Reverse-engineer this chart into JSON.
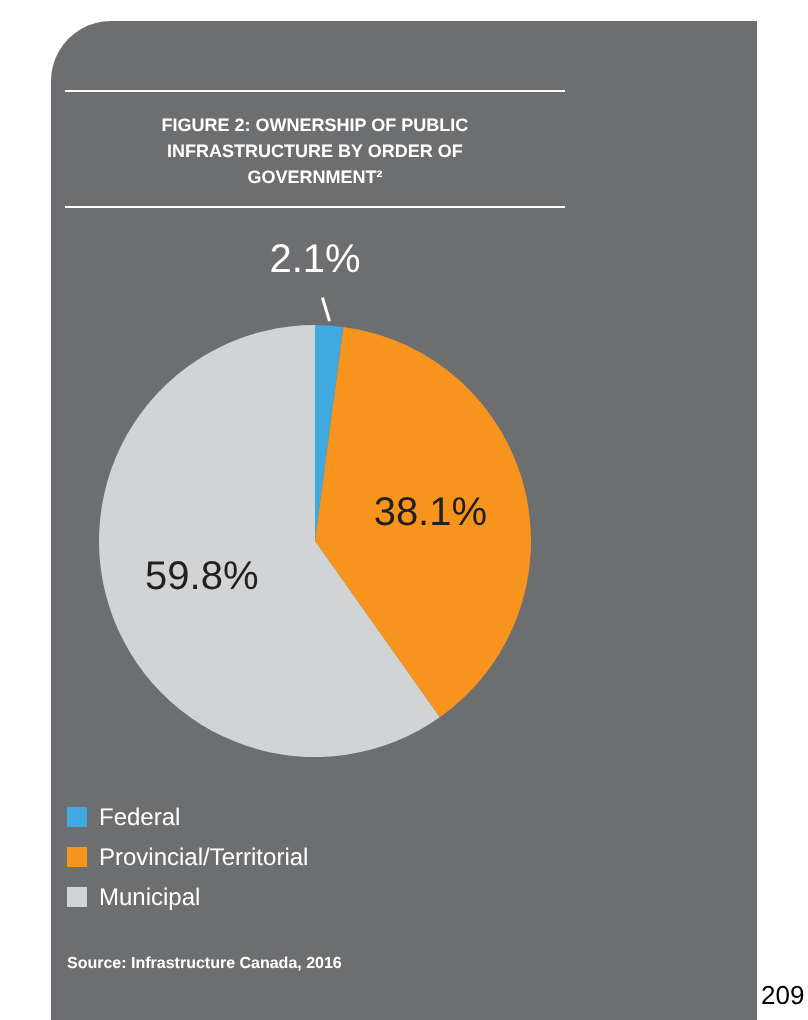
{
  "chart_data": {
    "type": "pie",
    "title": "FIGURE 2: OWNERSHIP OF PUBLIC INFRASTRUCTURE BY ORDER OF GOVERNMENT²",
    "categories": [
      "Federal",
      "Provincial/Territorial",
      "Municipal"
    ],
    "values": [
      2.1,
      38.1,
      59.8
    ],
    "colors": [
      "#3fa9e0",
      "#f7941d",
      "#d1d3d4"
    ],
    "value_labels": [
      "2.1%",
      "38.1%",
      "59.8%"
    ],
    "legend": "bottom left",
    "annotations": [
      "Source: Infrastructure Canada, 2016",
      "209"
    ]
  }
}
